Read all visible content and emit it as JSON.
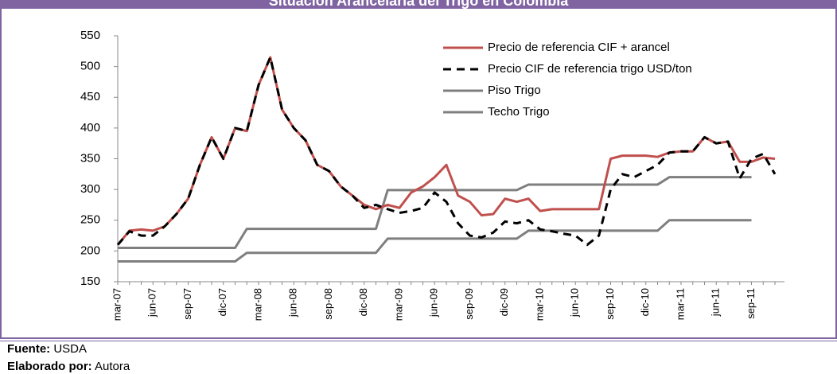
{
  "chart_data": {
    "type": "line",
    "title": "Situación Arancelaria del Trigo en Colombia",
    "categories": [
      "mar-07",
      null,
      null,
      "jun-07",
      null,
      null,
      "sep-07",
      null,
      null,
      "dic-07",
      null,
      null,
      "mar-08",
      null,
      null,
      "jun-08",
      null,
      null,
      "sep-08",
      null,
      null,
      "dic-08",
      null,
      null,
      "mar-09",
      null,
      null,
      "jun-09",
      null,
      null,
      "sep-09",
      null,
      null,
      "dic-09",
      null,
      null,
      "mar-10",
      null,
      null,
      "jun-10",
      null,
      null,
      "sep-10",
      null,
      null,
      "dic-10",
      null,
      null,
      "mar-11",
      null,
      null,
      "jun-11",
      null,
      null,
      "sep-11",
      null,
      null
    ],
    "series": [
      {
        "name": "Precio de referencia CIF + arancel",
        "color": "#c0504d",
        "dashed": false,
        "values": [
          210,
          233,
          235,
          233,
          240,
          260,
          285,
          340,
          385,
          350,
          400,
          395,
          470,
          515,
          430,
          400,
          380,
          340,
          330,
          305,
          290,
          275,
          268,
          275,
          270,
          295,
          305,
          320,
          340,
          290,
          280,
          258,
          260,
          285,
          280,
          285,
          265,
          268,
          268,
          268,
          268,
          268,
          350,
          355,
          355,
          355,
          353,
          360,
          362,
          362,
          385,
          375,
          378,
          345,
          345,
          352,
          350
        ]
      },
      {
        "name": "Precio CIF de referencia trigo USD/ton",
        "color": "#000000",
        "dashed": true,
        "values": [
          210,
          232,
          225,
          225,
          240,
          260,
          285,
          340,
          385,
          350,
          400,
          395,
          470,
          515,
          430,
          400,
          380,
          340,
          330,
          305,
          290,
          270,
          275,
          268,
          262,
          265,
          270,
          295,
          280,
          245,
          225,
          222,
          230,
          248,
          245,
          250,
          235,
          232,
          228,
          225,
          210,
          225,
          300,
          325,
          320,
          330,
          340,
          360,
          362,
          362,
          385,
          375,
          378,
          318,
          350,
          358,
          325
        ]
      },
      {
        "name": "Piso Trigo",
        "color": "#7f7f7f",
        "dashed": false,
        "values": [
          183,
          183,
          183,
          183,
          183,
          183,
          183,
          183,
          183,
          183,
          183,
          197,
          197,
          197,
          197,
          197,
          197,
          197,
          197,
          197,
          197,
          197,
          197,
          220,
          220,
          220,
          220,
          220,
          220,
          220,
          220,
          220,
          220,
          220,
          220,
          233,
          233,
          233,
          233,
          233,
          233,
          233,
          233,
          233,
          233,
          233,
          233,
          250,
          250,
          250,
          250,
          250,
          250,
          250,
          250,
          null,
          null
        ]
      },
      {
        "name": "Techo Trigo",
        "color": "#7f7f7f",
        "dashed": false,
        "values": [
          205,
          205,
          205,
          205,
          205,
          205,
          205,
          205,
          205,
          205,
          205,
          236,
          236,
          236,
          236,
          236,
          236,
          236,
          236,
          236,
          236,
          236,
          236,
          299,
          299,
          299,
          299,
          299,
          299,
          299,
          299,
          299,
          299,
          299,
          299,
          308,
          308,
          308,
          308,
          308,
          308,
          308,
          308,
          308,
          308,
          308,
          308,
          320,
          320,
          320,
          320,
          320,
          320,
          320,
          320,
          null,
          null
        ]
      }
    ],
    "ylim": [
      150,
      550
    ],
    "yticks": [
      150,
      200,
      250,
      300,
      350,
      400,
      450,
      500,
      550
    ],
    "legend": "top-right"
  },
  "footer": [
    {
      "label": "Fuente:",
      "text": "USDA"
    },
    {
      "label": "Elaborado por:",
      "text": "Autora"
    }
  ]
}
